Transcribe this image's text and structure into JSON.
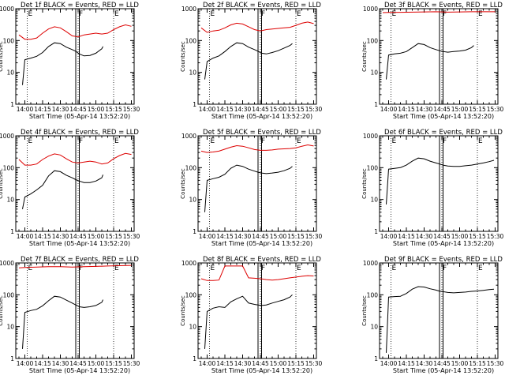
{
  "colors": {
    "events": "#000000",
    "lld": "#dd0000",
    "axes": "#000000",
    "background": "#ffffff"
  },
  "shared": {
    "xlabel": "Start Time (05-Apr-14 13:52:20)",
    "ylabel": "Counts/sec",
    "xtick_labels": [
      "14:00",
      "14:15",
      "14:30",
      "14:45",
      "15:00",
      "15:15",
      "15:30"
    ],
    "ytick_labels": [
      "1",
      "10",
      "100",
      "1000"
    ],
    "markers": [
      "E",
      "F",
      "E"
    ]
  },
  "chart_data": [
    {
      "type": "line",
      "title": "Det 1f BLACK = Events, RED = LLD",
      "ylim": [
        1,
        1000
      ],
      "yscale": "log",
      "x_range": [
        "13:52:20",
        "15:32:20"
      ],
      "event_lines": [
        "14:02",
        "14:45",
        "15:15"
      ],
      "shaded_window": [
        "14:43",
        "14:46"
      ],
      "series": [
        {
          "x": [
            "13:55",
            "14:00",
            "14:05",
            "14:10",
            "14:15",
            "14:20",
            "14:25",
            "14:30",
            "14:35",
            "14:40",
            "14:45",
            "14:50",
            "14:55",
            "15:00",
            "15:05",
            "15:10",
            "15:15",
            "15:20",
            "15:25",
            "15:30"
          ],
          "values": [
            150,
            110,
            110,
            120,
            170,
            230,
            270,
            250,
            190,
            140,
            130,
            150,
            160,
            170,
            160,
            170,
            220,
            270,
            310,
            280
          ]
        },
        {
          "x": [
            "13:58",
            "14:00",
            "14:05",
            "14:10",
            "14:15",
            "14:20",
            "14:25",
            "14:30",
            "14:35",
            "14:40",
            "14:43",
            "14:46",
            "14:50",
            "14:55",
            "15:00",
            "15:05",
            "15:06"
          ],
          "values": [
            4,
            25,
            28,
            32,
            42,
            65,
            85,
            80,
            62,
            52,
            46,
            38,
            33,
            34,
            40,
            55,
            65
          ]
        }
      ]
    },
    {
      "type": "line",
      "title": "Det 2f BLACK = Events, RED = LLD",
      "ylim": [
        1,
        1000
      ],
      "yscale": "log",
      "x_range": [
        "13:52:20",
        "15:32:20"
      ],
      "event_lines": [
        "14:02",
        "14:45",
        "15:15"
      ],
      "shaded_window": [
        "14:43",
        "14:46"
      ],
      "series": [
        {
          "x": [
            "13:55",
            "14:00",
            "14:05",
            "14:10",
            "14:15",
            "14:20",
            "14:25",
            "14:30",
            "14:35",
            "14:40",
            "14:45",
            "14:50",
            "14:55",
            "15:00",
            "15:05",
            "15:10",
            "15:15",
            "15:20",
            "15:25",
            "15:30"
          ],
          "values": [
            250,
            180,
            200,
            210,
            250,
            310,
            350,
            330,
            270,
            220,
            200,
            220,
            230,
            240,
            250,
            260,
            300,
            350,
            380,
            340
          ]
        },
        {
          "x": [
            "13:58",
            "14:00",
            "14:05",
            "14:10",
            "14:15",
            "14:20",
            "14:25",
            "14:30",
            "14:35",
            "14:40",
            "14:43",
            "14:46",
            "14:50",
            "14:55",
            "15:00",
            "15:05",
            "15:10",
            "15:12"
          ],
          "values": [
            6,
            22,
            28,
            33,
            45,
            65,
            85,
            80,
            62,
            52,
            46,
            40,
            38,
            42,
            48,
            58,
            70,
            80
          ]
        }
      ]
    },
    {
      "type": "line",
      "title": "Det 3f BLACK = Events, RED = LLD",
      "ylim": [
        1,
        1000
      ],
      "yscale": "log",
      "x_range": [
        "13:52:20",
        "15:32:20"
      ],
      "event_lines": [
        "14:02",
        "14:45",
        "15:15"
      ],
      "shaded_window": [
        "14:43",
        "14:46"
      ],
      "series": [
        {
          "x": [
            "13:55",
            "14:00",
            "14:10",
            "14:20",
            "14:30",
            "14:40",
            "14:50",
            "15:00",
            "15:10",
            "15:20",
            "15:30"
          ],
          "values": [
            750,
            760,
            770,
            780,
            790,
            800,
            780,
            790,
            800,
            800,
            800
          ]
        },
        {
          "x": [
            "13:58",
            "14:00",
            "14:05",
            "14:10",
            "14:15",
            "14:20",
            "14:25",
            "14:30",
            "14:35",
            "14:40",
            "14:43",
            "14:46",
            "14:50",
            "14:55",
            "15:00",
            "15:05",
            "15:10",
            "15:12"
          ],
          "values": [
            6,
            35,
            38,
            40,
            45,
            60,
            80,
            75,
            60,
            52,
            48,
            45,
            43,
            45,
            47,
            50,
            60,
            70
          ]
        }
      ]
    },
    {
      "type": "line",
      "title": "Det 4f BLACK = Events, RED = LLD",
      "ylim": [
        1,
        1000
      ],
      "yscale": "log",
      "x_range": [
        "13:52:20",
        "15:32:20"
      ],
      "event_lines": [
        "14:02",
        "14:45",
        "15:15"
      ],
      "shaded_window": [
        "14:43",
        "14:46"
      ],
      "series": [
        {
          "x": [
            "13:55",
            "14:00",
            "14:05",
            "14:10",
            "14:15",
            "14:20",
            "14:25",
            "14:30",
            "14:35",
            "14:40",
            "14:45",
            "14:50",
            "14:55",
            "15:00",
            "15:05",
            "15:10",
            "15:15",
            "15:20",
            "15:25",
            "15:30"
          ],
          "values": [
            180,
            120,
            120,
            130,
            180,
            230,
            270,
            250,
            190,
            150,
            140,
            150,
            160,
            150,
            130,
            140,
            190,
            240,
            280,
            260
          ]
        },
        {
          "x": [
            "13:58",
            "14:00",
            "14:05",
            "14:10",
            "14:15",
            "14:20",
            "14:25",
            "14:30",
            "14:35",
            "14:40",
            "14:43",
            "14:46",
            "14:50",
            "14:55",
            "15:00",
            "15:05",
            "15:06"
          ],
          "values": [
            5,
            12,
            15,
            20,
            28,
            55,
            80,
            75,
            58,
            48,
            42,
            38,
            34,
            34,
            38,
            48,
            60
          ]
        }
      ]
    },
    {
      "type": "line",
      "title": "Det 5f BLACK = Events, RED = LLD",
      "ylim": [
        1,
        1000
      ],
      "yscale": "log",
      "x_range": [
        "13:52:20",
        "15:32:20"
      ],
      "event_lines": [
        "14:02",
        "14:45",
        "15:15"
      ],
      "shaded_window": [
        "14:43",
        "14:46"
      ],
      "series": [
        {
          "x": [
            "13:55",
            "14:00",
            "14:05",
            "14:10",
            "14:15",
            "14:20",
            "14:25",
            "14:30",
            "14:35",
            "14:40",
            "14:45",
            "14:50",
            "14:55",
            "15:00",
            "15:05",
            "15:10",
            "15:15",
            "15:20",
            "15:25",
            "15:30"
          ],
          "values": [
            330,
            300,
            310,
            330,
            380,
            440,
            490,
            470,
            420,
            370,
            350,
            350,
            360,
            380,
            390,
            400,
            420,
            470,
            520,
            480
          ]
        },
        {
          "x": [
            "13:58",
            "14:00",
            "14:05",
            "14:10",
            "14:15",
            "14:20",
            "14:25",
            "14:30",
            "14:35",
            "14:40",
            "14:43",
            "14:46",
            "14:50",
            "14:55",
            "15:00",
            "15:05",
            "15:10",
            "15:12"
          ],
          "values": [
            4,
            40,
            45,
            50,
            62,
            95,
            120,
            110,
            90,
            78,
            72,
            68,
            65,
            68,
            72,
            80,
            95,
            110
          ]
        }
      ]
    },
    {
      "type": "line",
      "title": "Det 6f BLACK = Events, RED = LLD",
      "ylim": [
        1,
        1000
      ],
      "yscale": "log",
      "x_range": [
        "13:52:20",
        "15:32:20"
      ],
      "event_lines": [
        "14:02",
        "14:45",
        "15:15"
      ],
      "shaded_window": [
        "14:43",
        "14:46"
      ],
      "series": [
        {
          "x": [
            "13:58",
            "14:00",
            "14:05",
            "14:10",
            "14:15",
            "14:20",
            "14:25",
            "14:30",
            "14:35",
            "14:40",
            "14:43",
            "14:46",
            "14:50",
            "14:55",
            "15:00",
            "15:05",
            "15:10",
            "15:15",
            "15:20",
            "15:25",
            "15:29"
          ],
          "values": [
            7,
            90,
            95,
            100,
            120,
            160,
            200,
            190,
            160,
            140,
            130,
            120,
            112,
            110,
            110,
            115,
            120,
            130,
            140,
            155,
            170
          ]
        }
      ]
    },
    {
      "type": "line",
      "title": "Det 7f BLACK = Events, RED = LLD",
      "ylim": [
        1,
        1000
      ],
      "yscale": "log",
      "x_range": [
        "13:52:20",
        "15:32:20"
      ],
      "event_lines": [
        "14:02",
        "14:45",
        "15:15"
      ],
      "shaded_window": [
        "14:43",
        "14:46"
      ],
      "series": [
        {
          "x": [
            "13:55",
            "14:00",
            "14:10",
            "14:20",
            "14:30",
            "14:40",
            "14:50",
            "15:00",
            "15:10",
            "15:20",
            "15:30"
          ],
          "values": [
            700,
            720,
            740,
            760,
            760,
            740,
            760,
            780,
            800,
            820,
            840
          ]
        },
        {
          "x": [
            "13:58",
            "14:00",
            "14:05",
            "14:10",
            "14:15",
            "14:20",
            "14:25",
            "14:30",
            "14:35",
            "14:40",
            "14:43",
            "14:46",
            "14:50",
            "14:55",
            "15:00",
            "15:05",
            "15:06"
          ],
          "values": [
            2,
            28,
            32,
            35,
            45,
            65,
            90,
            85,
            68,
            55,
            48,
            42,
            40,
            42,
            46,
            58,
            70
          ]
        }
      ]
    },
    {
      "type": "line",
      "title": "Det 8f BLACK = Events, RED = LLD",
      "ylim": [
        1,
        1000
      ],
      "yscale": "log",
      "x_range": [
        "13:52:20",
        "15:32:20"
      ],
      "event_lines": [
        "14:02",
        "14:45",
        "15:15"
      ],
      "shaded_window": [
        "14:43",
        "14:46"
      ],
      "series": [
        {
          "x": [
            "13:55",
            "14:00",
            "14:05",
            "14:10",
            "14:15",
            "14:20",
            "14:25",
            "14:30",
            "14:35",
            "14:40",
            "14:45",
            "14:50",
            "14:55",
            "15:00",
            "15:05",
            "15:10",
            "15:15",
            "15:20",
            "15:25",
            "15:30"
          ],
          "values": [
            320,
            280,
            280,
            290,
            800,
            800,
            800,
            800,
            340,
            330,
            320,
            300,
            290,
            300,
            320,
            340,
            360,
            380,
            400,
            390
          ]
        },
        {
          "x": [
            "13:58",
            "14:00",
            "14:05",
            "14:10",
            "14:15",
            "14:20",
            "14:25",
            "14:30",
            "14:35",
            "14:40",
            "14:43",
            "14:46",
            "14:50",
            "14:55",
            "15:00",
            "15:05",
            "15:10",
            "15:12"
          ],
          "values": [
            2,
            30,
            38,
            42,
            40,
            60,
            75,
            90,
            55,
            50,
            48,
            46,
            48,
            55,
            62,
            70,
            85,
            100
          ]
        }
      ]
    },
    {
      "type": "line",
      "title": "Det 9f BLACK = Events, RED = LLD",
      "ylim": [
        1,
        1000
      ],
      "yscale": "log",
      "x_range": [
        "13:52:20",
        "15:32:20"
      ],
      "event_lines": [
        "14:02",
        "14:45",
        "15:15"
      ],
      "shaded_window": [
        "14:43",
        "14:46"
      ],
      "series": [
        {
          "x": [
            "13:58",
            "14:00",
            "14:05",
            "14:10",
            "14:15",
            "14:20",
            "14:25",
            "14:30",
            "14:35",
            "14:40",
            "14:43",
            "14:46",
            "14:50",
            "14:55",
            "15:00",
            "15:05",
            "15:10",
            "15:15",
            "15:20",
            "15:25",
            "15:29"
          ],
          "values": [
            1.5,
            85,
            88,
            90,
            110,
            150,
            180,
            175,
            155,
            140,
            130,
            125,
            118,
            115,
            118,
            122,
            128,
            132,
            138,
            145,
            150
          ]
        }
      ]
    }
  ]
}
